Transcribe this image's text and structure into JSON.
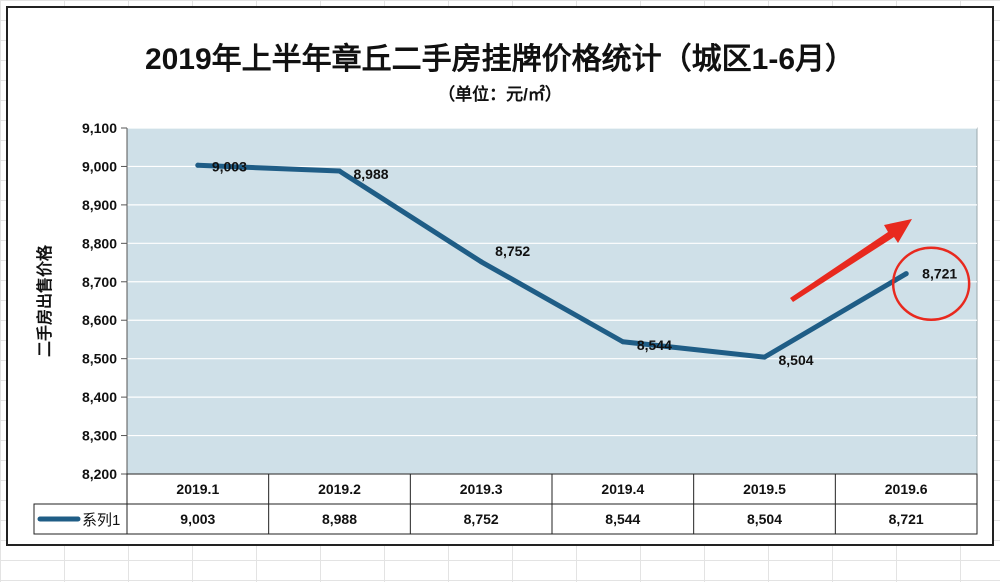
{
  "chart_data": {
    "type": "line",
    "title": "2019年上半年章丘二手房挂牌价格统计（城区1-6月）",
    "subtitle": "（单位：元/㎡）",
    "ylabel": "二手房出售价格",
    "xlabel": "",
    "categories": [
      "2019.1",
      "2019.2",
      "2019.3",
      "2019.4",
      "2019.5",
      "2019.6"
    ],
    "series": [
      {
        "name": "系列1",
        "values": [
          9003,
          8988,
          8752,
          8544,
          8504,
          8721
        ]
      }
    ],
    "data_labels": [
      "9,003",
      "8,988",
      "8,752",
      "8,544",
      "8,504",
      "8,721"
    ],
    "ylim": [
      8200,
      9100
    ],
    "yticks": [
      8200,
      8300,
      8400,
      8500,
      8600,
      8700,
      8800,
      8900,
      9000,
      9100
    ],
    "ytick_labels": [
      "8,200",
      "8,300",
      "8,400",
      "8,500",
      "8,600",
      "8,700",
      "8,800",
      "8,900",
      "9,000",
      "9,100"
    ],
    "grid": true,
    "legend": "data-table",
    "data_table": true,
    "colors": {
      "plot_bg": "#cfe0e8",
      "line": "#1f5d86",
      "grid": "#ffffff",
      "annotation": "#e8291e"
    },
    "annotations": [
      {
        "type": "arrow",
        "color": "#e8291e"
      },
      {
        "type": "circle",
        "target_index": 5,
        "color": "#e8291e"
      }
    ]
  }
}
